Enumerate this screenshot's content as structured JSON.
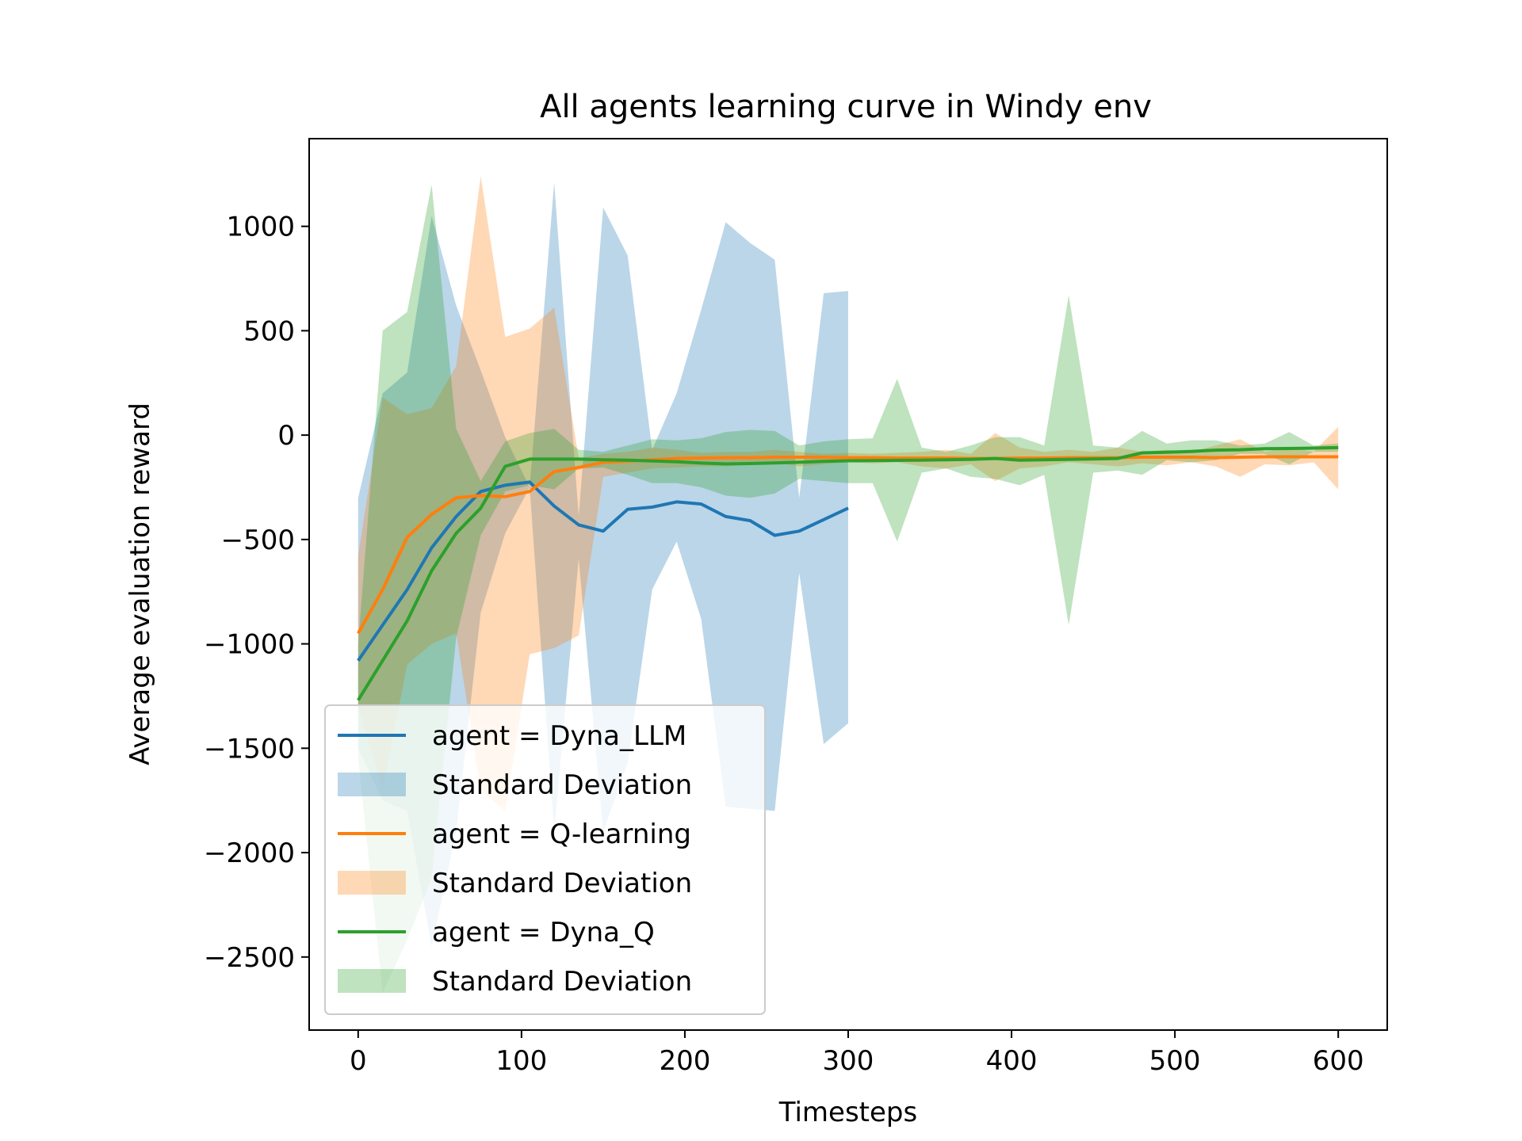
{
  "chart_data": {
    "type": "line",
    "title": "All agents learning curve in Windy env",
    "xlabel": "Timesteps",
    "ylabel": "Average evaluation reward",
    "xlim": [
      -30,
      630
    ],
    "ylim": [
      -2850,
      1420
    ],
    "xticks": [
      0,
      100,
      200,
      300,
      400,
      500,
      600
    ],
    "yticks": [
      1000,
      500,
      0,
      -500,
      -1000,
      -1500,
      -2000,
      -2500
    ],
    "grid": false,
    "legend_position": "lower-left",
    "series": [
      {
        "name": "agent = Dyna_LLM",
        "band_name": "Standard Deviation",
        "color": "#1f77b4",
        "x": [
          0,
          15,
          30,
          45,
          60,
          75,
          90,
          105,
          120,
          135,
          150,
          165,
          180,
          195,
          210,
          225,
          240,
          255,
          270,
          285,
          300
        ],
        "y": [
          -1080,
          -910,
          -740,
          -540,
          -390,
          -270,
          -240,
          -225,
          -340,
          -430,
          -460,
          -355,
          -345,
          -320,
          -330,
          -390,
          -410,
          -480,
          -460,
          -405,
          -350
        ],
        "upper": [
          -300,
          200,
          300,
          1050,
          620,
          310,
          -10,
          -250,
          1210,
          -390,
          1090,
          860,
          -70,
          200,
          600,
          1020,
          920,
          840,
          -300,
          680,
          690
        ],
        "lower": [
          -1500,
          -1750,
          -1800,
          -2450,
          -1900,
          -850,
          -470,
          -250,
          -1900,
          -590,
          -1900,
          -1570,
          -740,
          -510,
          -880,
          -1780,
          -1790,
          -1800,
          -660,
          -1480,
          -1380
        ]
      },
      {
        "name": "agent = Q-learning",
        "band_name": "Standard Deviation",
        "color": "#ff7f0e",
        "x": [
          0,
          15,
          30,
          45,
          60,
          75,
          90,
          105,
          120,
          135,
          150,
          165,
          180,
          195,
          210,
          225,
          240,
          255,
          270,
          285,
          300,
          315,
          330,
          345,
          360,
          375,
          390,
          405,
          420,
          435,
          450,
          465,
          480,
          495,
          510,
          525,
          540,
          555,
          570,
          585,
          600
        ],
        "y": [
          -950,
          -740,
          -490,
          -380,
          -300,
          -290,
          -295,
          -270,
          -175,
          -155,
          -130,
          -125,
          -118,
          -112,
          -110,
          -108,
          -108,
          -106,
          -106,
          -106,
          -108,
          -108,
          -110,
          -110,
          -110,
          -112,
          -112,
          -110,
          -110,
          -108,
          -108,
          -108,
          -106,
          -106,
          -106,
          -108,
          -106,
          -104,
          -104,
          -104,
          -104
        ],
        "upper": [
          -580,
          180,
          100,
          130,
          330,
          1240,
          470,
          510,
          610,
          -110,
          -90,
          -80,
          -60,
          -70,
          -85,
          -80,
          -80,
          -70,
          -80,
          -90,
          -85,
          -90,
          -85,
          -80,
          -70,
          -90,
          10,
          -60,
          -80,
          -70,
          -80,
          -60,
          -80,
          -70,
          -80,
          -50,
          -20,
          -80,
          -60,
          -80,
          40
        ],
        "lower": [
          -1300,
          -1700,
          -1100,
          -1000,
          -950,
          -1700,
          -1800,
          -1050,
          -1020,
          -960,
          -200,
          -180,
          -160,
          -155,
          -150,
          -150,
          -140,
          -130,
          -150,
          -140,
          -130,
          -135,
          -130,
          -150,
          -160,
          -140,
          -220,
          -160,
          -150,
          -130,
          -140,
          -150,
          -135,
          -145,
          -130,
          -150,
          -200,
          -140,
          -145,
          -130,
          -260
        ]
      },
      {
        "name": "agent = Dyna_Q",
        "band_name": "Standard Deviation",
        "color": "#2ca02c",
        "x": [
          0,
          15,
          30,
          45,
          60,
          75,
          90,
          105,
          120,
          135,
          150,
          165,
          180,
          195,
          210,
          225,
          240,
          255,
          270,
          285,
          300,
          315,
          330,
          345,
          360,
          375,
          390,
          405,
          420,
          435,
          450,
          465,
          480,
          495,
          510,
          525,
          540,
          555,
          570,
          585,
          600
        ],
        "y": [
          -1270,
          -1080,
          -890,
          -650,
          -470,
          -350,
          -150,
          -115,
          -115,
          -115,
          -118,
          -120,
          -124,
          -128,
          -134,
          -138,
          -136,
          -133,
          -130,
          -126,
          -123,
          -122,
          -121,
          -120,
          -118,
          -116,
          -112,
          -120,
          -118,
          -116,
          -114,
          -112,
          -85,
          -82,
          -78,
          -72,
          -70,
          -65,
          -64,
          -62,
          -60
        ],
        "upper": [
          -1000,
          500,
          590,
          1200,
          30,
          -220,
          -30,
          10,
          30,
          -70,
          -80,
          -50,
          -20,
          -25,
          -15,
          15,
          25,
          20,
          -50,
          -30,
          -20,
          -15,
          270,
          -60,
          -80,
          -50,
          -10,
          -10,
          -50,
          670,
          -50,
          -60,
          20,
          -40,
          -25,
          -25,
          -50,
          -40,
          15,
          -50,
          -40
        ],
        "lower": [
          -1550,
          -2670,
          -2420,
          -2120,
          -970,
          -480,
          -270,
          -240,
          -260,
          -160,
          -155,
          -190,
          -230,
          -230,
          -250,
          -290,
          -300,
          -280,
          -210,
          -220,
          -230,
          -230,
          -510,
          -180,
          -160,
          -200,
          -210,
          -240,
          -190,
          -910,
          -180,
          -170,
          -190,
          -120,
          -130,
          -120,
          -90,
          -90,
          -140,
          -80,
          -80
        ]
      }
    ]
  }
}
